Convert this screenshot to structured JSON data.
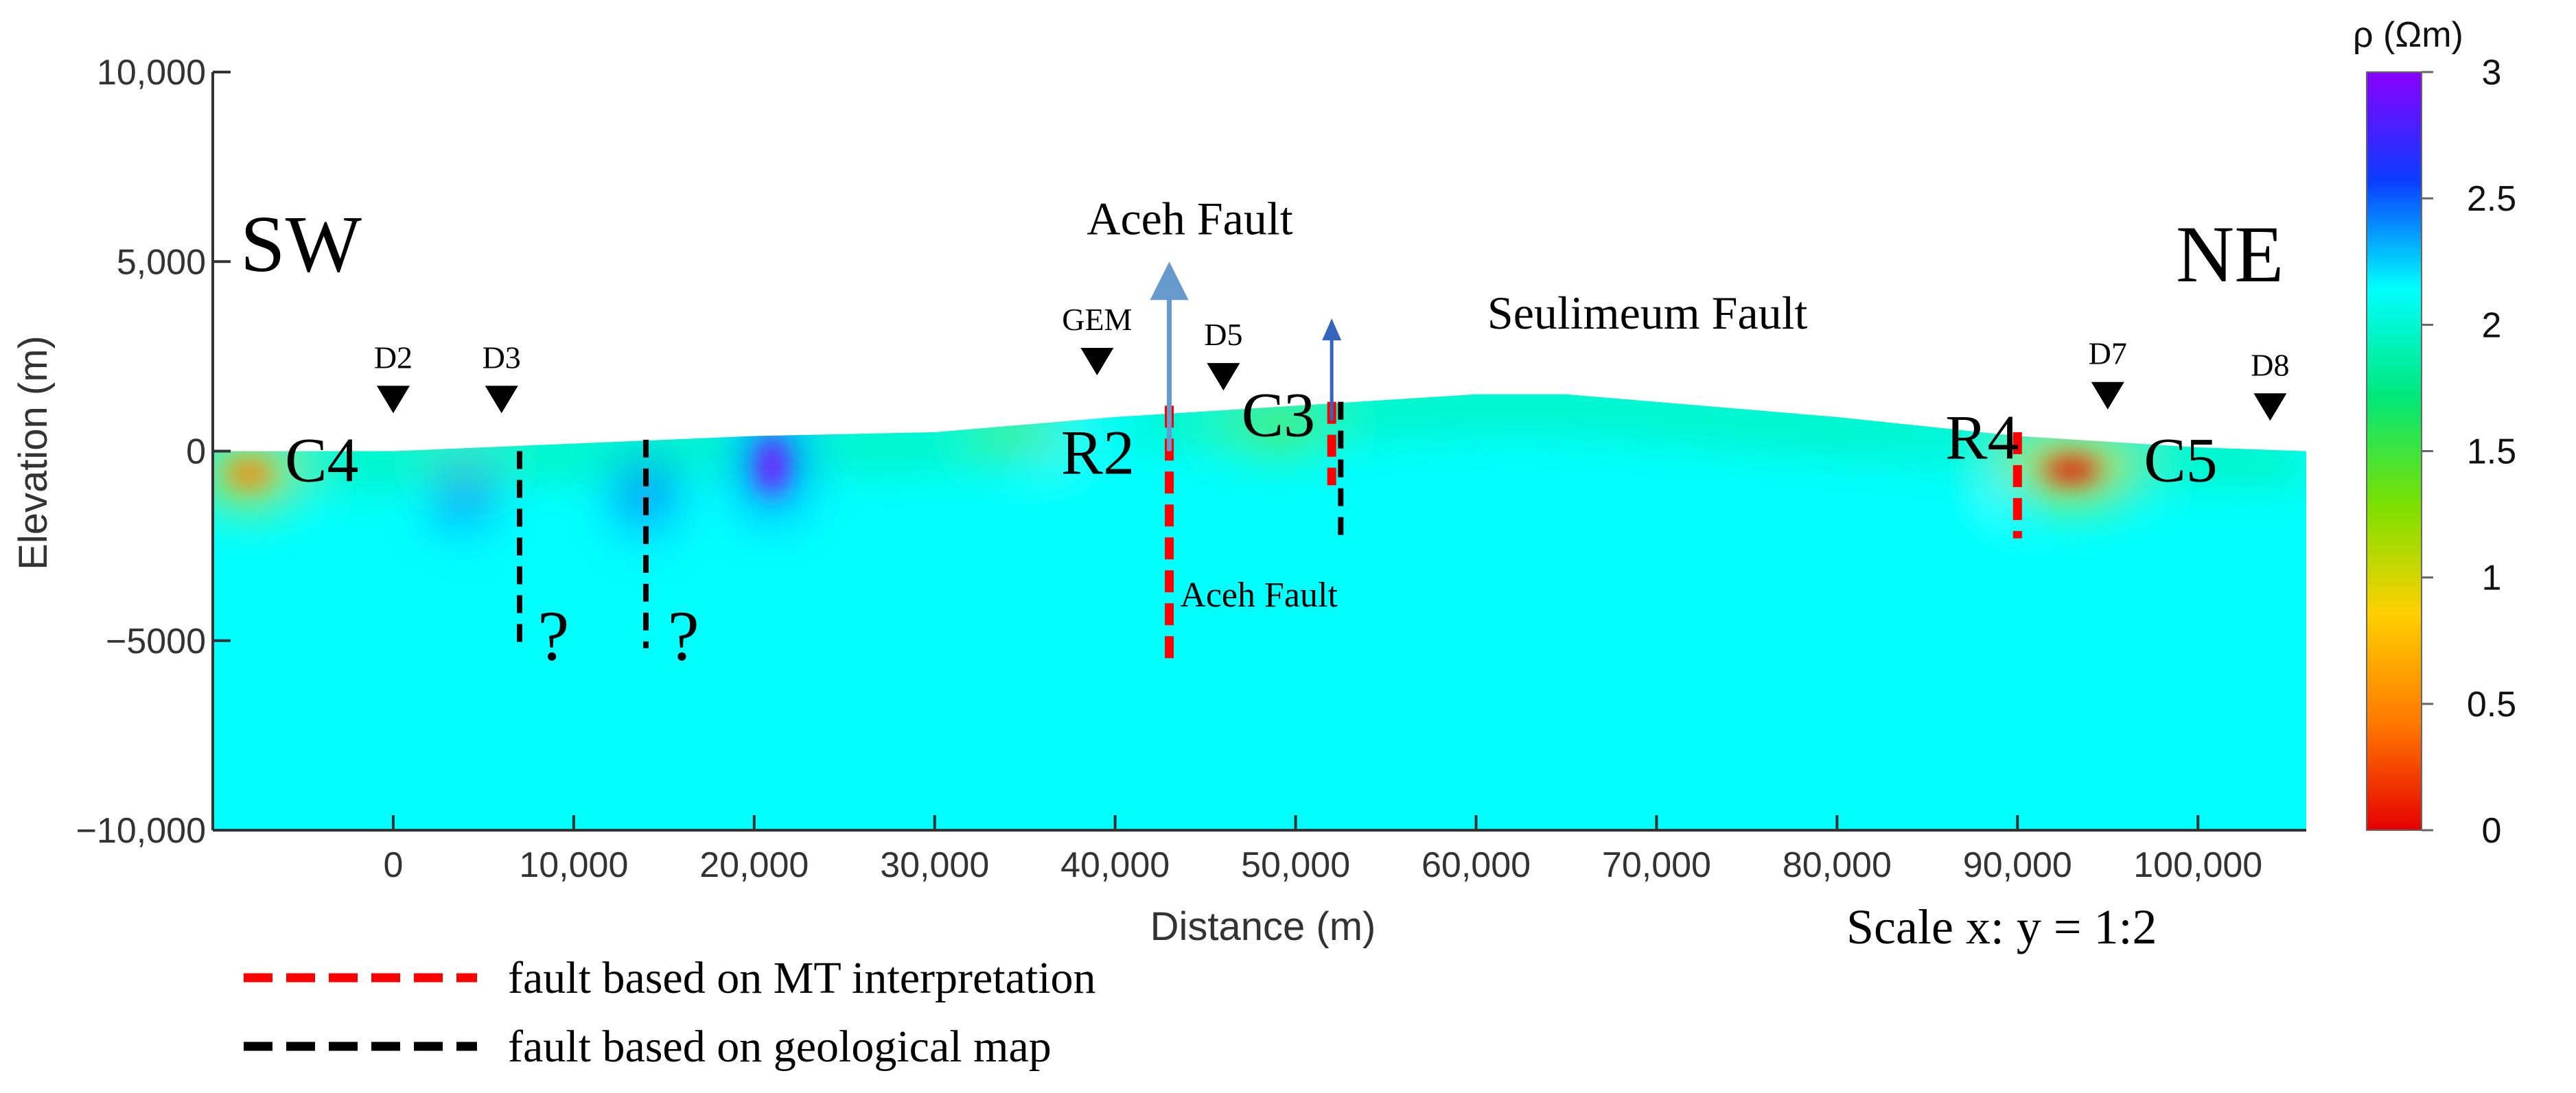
{
  "chart_data": {
    "type": "heatmap",
    "title": "",
    "xlabel": "Distance (m)",
    "ylabel": "Elevation (m)",
    "xlim": [
      -10000,
      106000
    ],
    "ylim": [
      -10000,
      10000
    ],
    "x_ticks": [
      {
        "value": 0,
        "label": "0"
      },
      {
        "value": 10000,
        "label": "10,000"
      },
      {
        "value": 20000,
        "label": "20,000"
      },
      {
        "value": 30000,
        "label": "30,000"
      },
      {
        "value": 40000,
        "label": "40,000"
      },
      {
        "value": 50000,
        "label": "50,000"
      },
      {
        "value": 60000,
        "label": "60,000"
      },
      {
        "value": 70000,
        "label": "70,000"
      },
      {
        "value": 80000,
        "label": "80,000"
      },
      {
        "value": 90000,
        "label": "90,000"
      },
      {
        "value": 100000,
        "label": "100,000"
      }
    ],
    "y_ticks": [
      {
        "value": 10000,
        "label": "10,000"
      },
      {
        "value": 5000,
        "label": "5,000"
      },
      {
        "value": 0,
        "label": "0"
      },
      {
        "value": -5000,
        "label": "−5000"
      },
      {
        "value": -10000,
        "label": "−10,000"
      }
    ],
    "colorbar": {
      "label": "ρ (Ωm)",
      "range": [
        0,
        3
      ],
      "ticks": [
        "3",
        "2.5",
        "2",
        "1.5",
        "1",
        "0.5",
        "0"
      ],
      "tick_values": [
        3,
        2.5,
        2,
        1.5,
        1,
        0.5,
        0
      ],
      "colors": [
        "#e60000",
        "#ff7a00",
        "#ffd000",
        "#7ce000",
        "#00e87a",
        "#00ffff",
        "#0a3cff",
        "#8a00ff"
      ]
    },
    "direction_labels": {
      "left": "SW",
      "right": "NE"
    },
    "stations": [
      {
        "name": "D2",
        "x": 0,
        "y": 1000
      },
      {
        "name": "D3",
        "x": 6000,
        "y": 1000
      },
      {
        "name": "GEM",
        "x": 39000,
        "y": 2000
      },
      {
        "name": "D5",
        "x": 46000,
        "y": 1600
      },
      {
        "name": "D7",
        "x": 95000,
        "y": 1100
      },
      {
        "name": "D8",
        "x": 104000,
        "y": 800
      }
    ],
    "mt_faults": [
      {
        "x": 43000,
        "top": 1200,
        "bottom": -5500
      },
      {
        "x": 52000,
        "top": 1300,
        "bottom": -900
      },
      {
        "x": 90000,
        "top": 500,
        "bottom": -2300
      }
    ],
    "geo_faults": [
      {
        "x": 7000,
        "top": 0,
        "bottom": -5200
      },
      {
        "x": 14000,
        "top": 300,
        "bottom": -5200
      },
      {
        "x": 52500,
        "top": 1300,
        "bottom": -2300
      }
    ],
    "fault_arrows": [
      {
        "name": "Aceh Fault",
        "x": 43000,
        "from": 0,
        "to": 5000
      },
      {
        "name": "Seulimeum Fault",
        "x": 52000,
        "from": 800,
        "to": 3500
      }
    ],
    "zone_labels": [
      {
        "text": "C4",
        "x": -6000,
        "y": -800,
        "color": "#000000"
      },
      {
        "text": "R2",
        "x": 37000,
        "y": -600,
        "color": "#ffffff"
      },
      {
        "text": "C3",
        "x": 47000,
        "y": 400,
        "color": "#000000"
      },
      {
        "text": "R4",
        "x": 86000,
        "y": -200,
        "color": "#000000"
      },
      {
        "text": "C5",
        "x": 97000,
        "y": -800,
        "color": "#000000"
      }
    ],
    "fault_labels": [
      {
        "text": "Aceh Fault",
        "x": 43600,
        "y": -4100
      }
    ],
    "question_marks": [
      {
        "text": "?",
        "x": 8000,
        "y": -5500
      },
      {
        "text": "?",
        "x": 15200,
        "y": -5500
      }
    ],
    "scale_note": "Scale x: y = 1:2",
    "legend": [
      {
        "label": "fault based on MT interpretation",
        "color": "#ff0000"
      },
      {
        "label": "fault based on geological map",
        "color": "#000000"
      }
    ]
  }
}
